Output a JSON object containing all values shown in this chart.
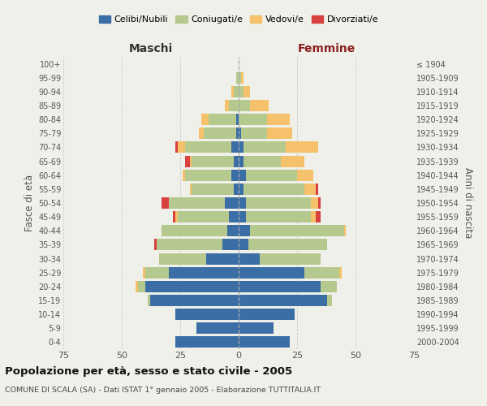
{
  "age_groups": [
    "0-4",
    "5-9",
    "10-14",
    "15-19",
    "20-24",
    "25-29",
    "30-34",
    "35-39",
    "40-44",
    "45-49",
    "50-54",
    "55-59",
    "60-64",
    "65-69",
    "70-74",
    "75-79",
    "80-84",
    "85-89",
    "90-94",
    "95-99",
    "100+"
  ],
  "birth_years": [
    "2000-2004",
    "1995-1999",
    "1990-1994",
    "1985-1989",
    "1980-1984",
    "1975-1979",
    "1970-1974",
    "1965-1969",
    "1960-1964",
    "1955-1959",
    "1950-1954",
    "1945-1949",
    "1940-1944",
    "1935-1939",
    "1930-1934",
    "1925-1929",
    "1920-1924",
    "1915-1919",
    "1910-1914",
    "1905-1909",
    "≤ 1904"
  ],
  "male": {
    "celibi": [
      27,
      18,
      27,
      38,
      40,
      30,
      14,
      7,
      5,
      4,
      6,
      2,
      3,
      2,
      3,
      1,
      1,
      0,
      0,
      0,
      0
    ],
    "coniugati": [
      0,
      0,
      0,
      1,
      3,
      10,
      20,
      28,
      28,
      22,
      24,
      18,
      20,
      18,
      20,
      14,
      12,
      4,
      2,
      1,
      0
    ],
    "vedovi": [
      0,
      0,
      0,
      0,
      1,
      1,
      0,
      0,
      0,
      1,
      0,
      1,
      1,
      1,
      3,
      2,
      3,
      2,
      1,
      0,
      0
    ],
    "divorziati": [
      0,
      0,
      0,
      0,
      0,
      0,
      0,
      1,
      0,
      1,
      3,
      0,
      0,
      2,
      1,
      0,
      0,
      0,
      0,
      0,
      0
    ]
  },
  "female": {
    "nubili": [
      22,
      15,
      24,
      38,
      35,
      28,
      9,
      4,
      5,
      3,
      3,
      2,
      3,
      2,
      2,
      1,
      0,
      0,
      0,
      0,
      0
    ],
    "coniugate": [
      0,
      0,
      0,
      2,
      7,
      15,
      26,
      34,
      40,
      28,
      28,
      26,
      22,
      16,
      18,
      11,
      12,
      5,
      2,
      1,
      0
    ],
    "vedove": [
      0,
      0,
      0,
      0,
      0,
      1,
      0,
      0,
      1,
      2,
      3,
      5,
      7,
      10,
      14,
      11,
      10,
      8,
      3,
      1,
      0
    ],
    "divorziate": [
      0,
      0,
      0,
      0,
      0,
      0,
      0,
      0,
      0,
      2,
      1,
      1,
      0,
      0,
      0,
      0,
      0,
      0,
      0,
      0,
      0
    ]
  },
  "colors": {
    "celibi_nubili": "#3a6ea5",
    "coniugati": "#b5c98e",
    "vedovi": "#f5c26b",
    "divorziati": "#d94040"
  },
  "xlim": 75,
  "title": "Popolazione per età, sesso e stato civile - 2005",
  "subtitle": "COMUNE DI SCALA (SA) - Dati ISTAT 1° gennaio 2005 - Elaborazione TUTTITALIA.IT",
  "ylabel_left": "Fasce di età",
  "ylabel_right": "Anni di nascita",
  "xlabel_male": "Maschi",
  "xlabel_female": "Femmine",
  "legend_labels": [
    "Celibi/Nubili",
    "Coniugati/e",
    "Vedovi/e",
    "Divorziati/e"
  ],
  "bg_color": "#f0f0eb",
  "grid_color": "#cccccc"
}
